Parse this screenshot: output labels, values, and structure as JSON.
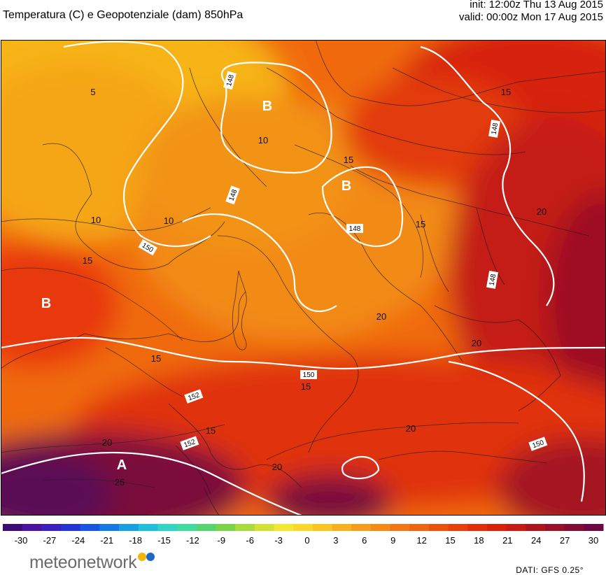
{
  "header": {
    "title": "Temperatura (C) e Geopotenziale (dam) 850hPa",
    "init": "init: 12:00z Thu 13 Aug 2015",
    "valid": "valid: 00:00z Mon 17 Aug 2015"
  },
  "map": {
    "pressure_labels": [
      {
        "name": "B",
        "type": "low"
      },
      {
        "name": "B",
        "type": "low"
      },
      {
        "name": "B",
        "type": "low"
      },
      {
        "name": "A",
        "type": "high"
      }
    ],
    "geopotential_labels": [
      "148",
      "148",
      "148",
      "148",
      "148",
      "150",
      "150",
      "150",
      "152",
      "152"
    ],
    "temperature_labels": [
      "5",
      "10",
      "10",
      "10",
      "15",
      "15",
      "15",
      "15",
      "15",
      "15",
      "15",
      "20",
      "20",
      "20",
      "20",
      "20",
      "25",
      "20"
    ]
  },
  "colorbar": {
    "ticks": [
      "-30",
      "-27",
      "-24",
      "-21",
      "-18",
      "-15",
      "-12",
      "-9",
      "-6",
      "-3",
      "0",
      "3",
      "6",
      "9",
      "12",
      "15",
      "18",
      "21",
      "24",
      "27",
      "30"
    ],
    "colors": [
      "#3d0a78",
      "#4a12a0",
      "#3a1fc2",
      "#2034d8",
      "#1656e6",
      "#137ae6",
      "#17a0e2",
      "#1fc0dc",
      "#2fd6c6",
      "#3fdca0",
      "#56d470",
      "#7ad448",
      "#a8dc3a",
      "#d2e232",
      "#f4e82e",
      "#fbd728",
      "#fbc41f",
      "#f9b01a",
      "#f79c18",
      "#f58a15",
      "#f37612",
      "#f1630f",
      "#ee500c",
      "#ea3e0a",
      "#e42d08",
      "#dc2006",
      "#c81a10",
      "#b0141a",
      "#9a1026",
      "#840c34",
      "#6e0842"
    ]
  },
  "footer": {
    "logo_text": "meteonetwork",
    "source": "DATI:  GFS  0.25°"
  }
}
